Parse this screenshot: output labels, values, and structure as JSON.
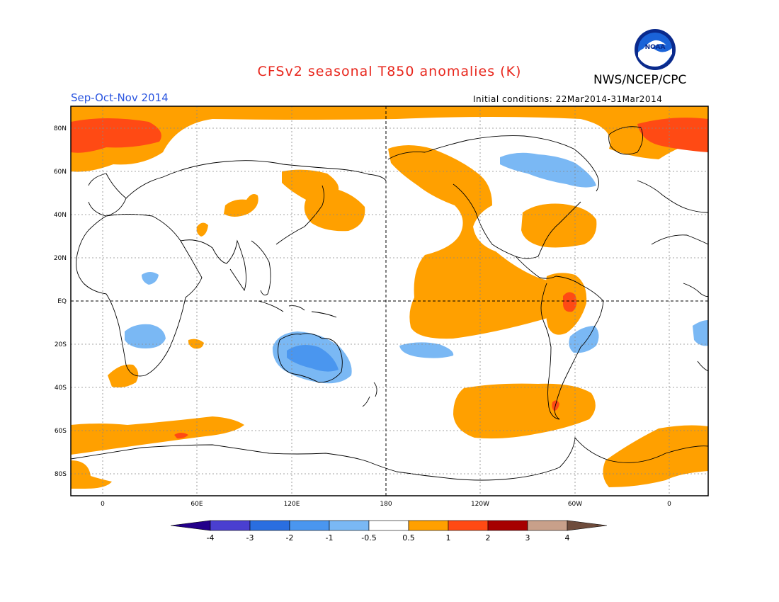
{
  "header": {
    "title": "CFSv2 seasonal T850 anomalies (K)",
    "title_color": "#e8261c",
    "agency": "NWS/NCEP/CPC",
    "season": "Sep-Oct-Nov 2014",
    "season_color": "#2a55e0",
    "initial_conditions": "Initial conditions: 22Mar2014-31Mar2014"
  },
  "logo": {
    "icon": "noaa-logo-icon",
    "text": "NOAA"
  },
  "map": {
    "lat_labels": [
      "80N",
      "60N",
      "40N",
      "20N",
      "EQ",
      "20S",
      "40S",
      "60S",
      "80S"
    ],
    "lon_labels": [
      "0",
      "60E",
      "120E",
      "180",
      "120W",
      "60W",
      "0"
    ]
  },
  "colorbar": {
    "colors": [
      "#23008a",
      "#4a3fd0",
      "#2a6ee0",
      "#4a96ef",
      "#7ab8f4",
      "#ffffff",
      "#ffa000",
      "#ff4a14",
      "#a60000",
      "#c8a08a",
      "#6e4c3c"
    ],
    "labels": [
      "-4",
      "-3",
      "-2",
      "-1",
      "-0.5",
      "0.5",
      "1",
      "2",
      "3",
      "4"
    ]
  }
}
